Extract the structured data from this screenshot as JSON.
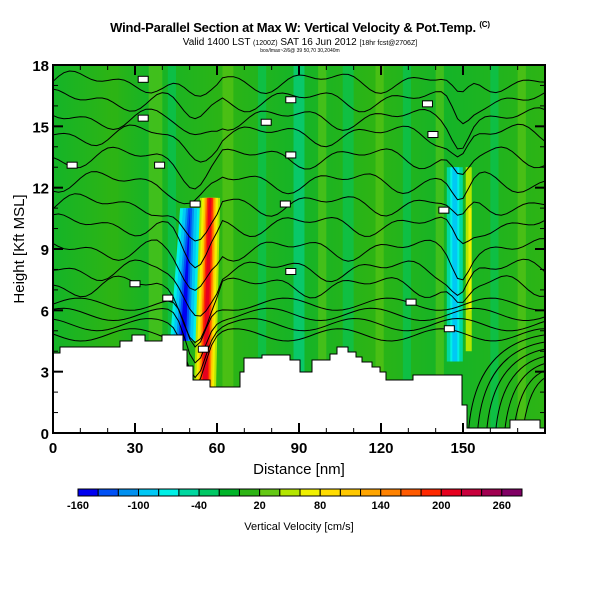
{
  "chart_data": {
    "type": "heatmap",
    "title": "Wind-Parallel Section at Max W: Vertical Velocity & Pot.Temp.",
    "title_mark": "(C)",
    "subtitle_main": "Valid 1400 LST",
    "subtitle_utc": "(1200Z)",
    "subtitle_date": "SAT 16 Jun 2012",
    "subtitle_run": "[18hr fcst@2706Z]",
    "subtitle_small": "box/lmax~2/6@ 39 50,70 30,2040m",
    "xlabel": "Distance [nm]",
    "ylabel": "Height [Kft MSL]",
    "xlim": [
      0,
      180
    ],
    "ylim": [
      0,
      18
    ],
    "xticks": [
      0,
      30,
      60,
      90,
      120,
      150
    ],
    "yticks": [
      0,
      3,
      6,
      9,
      12,
      15,
      18
    ],
    "colorbar": {
      "label": "Vertical Velocity [cm/s]",
      "range": [
        -160,
        280
      ],
      "step": 20,
      "tick_labels": [
        "-160",
        "-100",
        "-40",
        "20",
        "80",
        "140",
        "200",
        "260"
      ],
      "colors": [
        "#0000f0",
        "#0050f5",
        "#0090f0",
        "#00c8f5",
        "#00f0e6",
        "#00d8a0",
        "#00c864",
        "#00b428",
        "#2db414",
        "#64c814",
        "#b4e600",
        "#f0f000",
        "#ffdc00",
        "#ffc800",
        "#ffa500",
        "#ff8200",
        "#ff5a00",
        "#ff2800",
        "#e6001e",
        "#c8003c",
        "#a00050",
        "#800064"
      ]
    },
    "features": [
      {
        "name": "downdraft",
        "x_nm": 47,
        "height_kft": [
          4.5,
          9
        ],
        "min_w": -160
      },
      {
        "name": "updraft",
        "x_nm": 56,
        "height_kft": [
          3,
          8
        ],
        "max_w": 200
      },
      {
        "name": "secondary updraft",
        "x_nm": 150,
        "height_kft": [
          5,
          12
        ],
        "max_w": 60
      }
    ],
    "series": [
      {
        "name": "Potential temperature isentropes",
        "type": "contour"
      }
    ]
  }
}
